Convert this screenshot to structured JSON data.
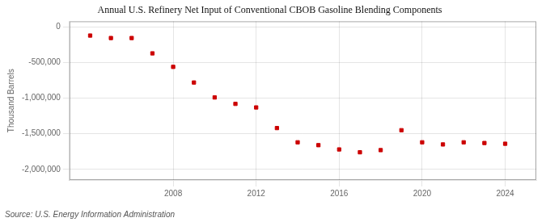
{
  "chart_data": {
    "type": "scatter",
    "title": "Annual U.S. Refinery Net Input of Conventional CBOB Gasoline Blending Components",
    "ylabel": "Thousand Barrels",
    "annotations": [
      "Source: U.S. Energy Information Administration"
    ],
    "x": [
      2004,
      2005,
      2006,
      2007,
      2008,
      2009,
      2010,
      2011,
      2012,
      2013,
      2014,
      2015,
      2016,
      2017,
      2018,
      2019,
      2020,
      2021,
      2022,
      2023,
      2024
    ],
    "values": [
      -120000,
      -155000,
      -155000,
      -370000,
      -560000,
      -780000,
      -990000,
      -1080000,
      -1130000,
      -1420000,
      -1620000,
      -1660000,
      -1720000,
      -1760000,
      -1730000,
      -1450000,
      -1620000,
      -1650000,
      -1620000,
      -1630000,
      -1640000
    ],
    "color": "#cc0000",
    "marker": "square",
    "xlim": [
      2003.0,
      2025.5
    ],
    "xticks": [
      2008,
      2012,
      2016,
      2020,
      2024
    ],
    "ylim": [
      -2150000,
      80000
    ],
    "yticks": [
      0,
      {
        "value": -500000,
        "label": "-500,000"
      },
      {
        "value": -1000000,
        "label": "-1,000,000"
      },
      {
        "value": -1500000,
        "label": "-1,500,000"
      },
      {
        "value": -2000000,
        "label": "-2,000,000"
      }
    ],
    "grid": true
  }
}
